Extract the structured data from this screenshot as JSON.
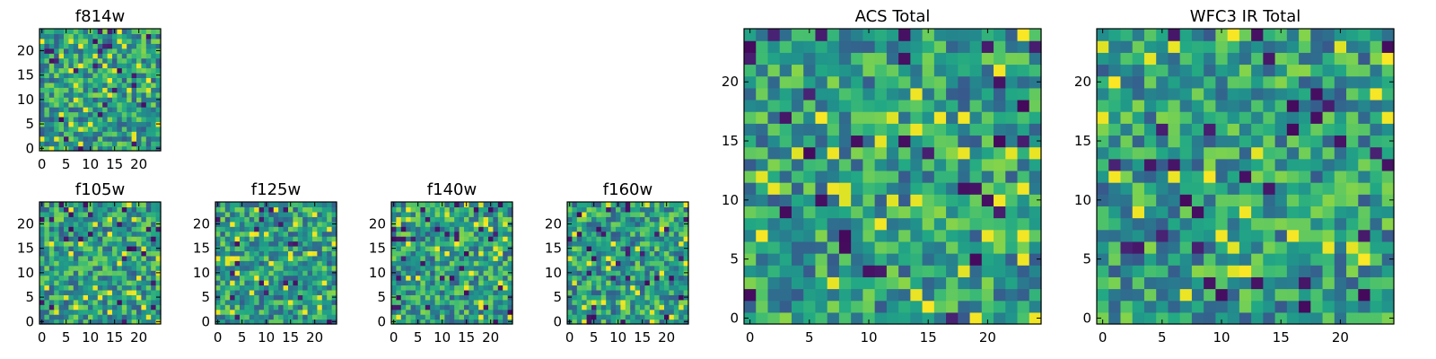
{
  "chart_data": [
    {
      "type": "heatmap",
      "title": "f814w",
      "xlim": [
        0,
        25
      ],
      "ylim": [
        0,
        25
      ],
      "xticks": [
        0,
        5,
        10,
        15,
        20
      ],
      "yticks": [
        0,
        5,
        10,
        15,
        20
      ],
      "nx": 25,
      "ny": 25,
      "colormap": "viridis",
      "seed": 1814,
      "values": []
    },
    {
      "type": "heatmap",
      "title": "f105w",
      "xlim": [
        0,
        25
      ],
      "ylim": [
        0,
        25
      ],
      "xticks": [
        0,
        5,
        10,
        15,
        20
      ],
      "yticks": [
        0,
        5,
        10,
        15,
        20
      ],
      "nx": 25,
      "ny": 25,
      "colormap": "viridis",
      "seed": 2105,
      "values": []
    },
    {
      "type": "heatmap",
      "title": "f125w",
      "xlim": [
        0,
        25
      ],
      "ylim": [
        0,
        25
      ],
      "xticks": [
        0,
        5,
        10,
        15,
        20
      ],
      "yticks": [
        0,
        5,
        10,
        15,
        20
      ],
      "nx": 25,
      "ny": 25,
      "colormap": "viridis",
      "seed": 3125,
      "values": []
    },
    {
      "type": "heatmap",
      "title": "f140w",
      "xlim": [
        0,
        25
      ],
      "ylim": [
        0,
        25
      ],
      "xticks": [
        0,
        5,
        10,
        15,
        20
      ],
      "yticks": [
        0,
        5,
        10,
        15,
        20
      ],
      "nx": 25,
      "ny": 25,
      "colormap": "viridis",
      "seed": 4140,
      "values": []
    },
    {
      "type": "heatmap",
      "title": "f160w",
      "xlim": [
        0,
        25
      ],
      "ylim": [
        0,
        25
      ],
      "xticks": [
        0,
        5,
        10,
        15,
        20
      ],
      "yticks": [
        0,
        5,
        10,
        15,
        20
      ],
      "nx": 25,
      "ny": 25,
      "colormap": "viridis",
      "seed": 5160,
      "values": []
    },
    {
      "type": "heatmap",
      "title": "ACS Total",
      "xlim": [
        0,
        25
      ],
      "ylim": [
        0,
        25
      ],
      "xticks": [
        0,
        5,
        10,
        15,
        20
      ],
      "yticks": [
        0,
        5,
        10,
        15,
        20
      ],
      "nx": 25,
      "ny": 25,
      "colormap": "viridis",
      "seed": 6001,
      "values": []
    },
    {
      "type": "heatmap",
      "title": "WFC3 IR Total",
      "xlim": [
        0,
        25
      ],
      "ylim": [
        0,
        25
      ],
      "xticks": [
        0,
        5,
        10,
        15,
        20
      ],
      "yticks": [
        0,
        5,
        10,
        15,
        20
      ],
      "nx": 25,
      "ny": 25,
      "colormap": "viridis",
      "seed": 7002,
      "values": []
    }
  ]
}
